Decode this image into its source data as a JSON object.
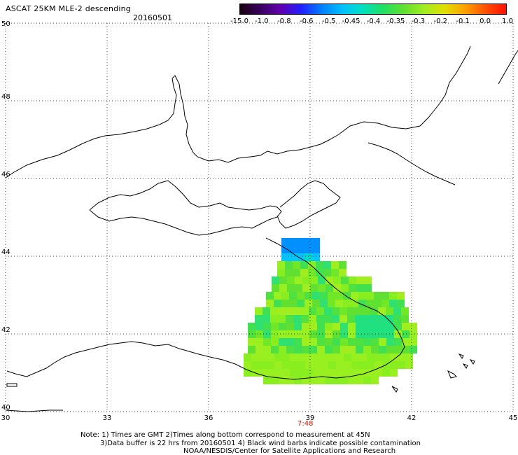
{
  "title": "ASCAT 25KM MLE-2 descending",
  "date": "20160501",
  "colorbar": {
    "ticks": [
      "-15.0",
      "-1.0",
      "-0.8",
      "-0.6",
      "-0.5",
      "-0.45",
      "-0.4",
      "-0.35",
      "-0.3",
      "-0.2",
      "-0.1",
      "0.0",
      "1.0"
    ],
    "colors": [
      "#1a0010",
      "#3a0060",
      "#6000b0",
      "#2020ff",
      "#0080ff",
      "#00c0ff",
      "#00e0c0",
      "#20e060",
      "#60e030",
      "#a0ee20",
      "#e0e000",
      "#ffa000",
      "#ff5000",
      "#ff1000"
    ]
  },
  "map": {
    "lon_range": [
      30,
      45
    ],
    "lat_range": [
      40,
      50
    ],
    "lon_ticks": [
      "30",
      "33",
      "36",
      "39",
      "42",
      "45"
    ],
    "lat_ticks": [
      "40",
      "42",
      "44",
      "46",
      "48",
      "50"
    ],
    "pass_time": "7:48"
  },
  "notes": {
    "line1": "Note: 1) Times are GMT 2)Times along bottom correspond to measurement at 45N",
    "line2": "3)Data buffer is 22 hrs from 20160501 4) Black wind barbs indicate possible contamination",
    "line3": "NOAA/NESDIS/Center for Satellite Applications and Research"
  }
}
